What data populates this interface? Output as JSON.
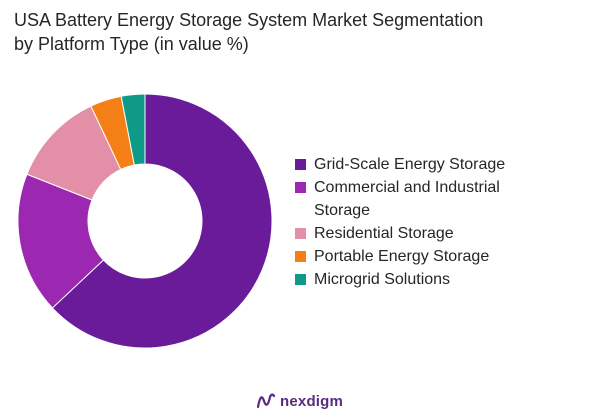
{
  "chart_data": {
    "type": "pie",
    "title_line1": "USA Battery Energy Storage System Market Segmentation",
    "title_line2": "by Platform Type (in value %)",
    "donut": true,
    "categories": [
      "Grid-Scale Energy Storage",
      "Commercial and Industrial Storage",
      "Residential Storage",
      "Portable Energy Storage",
      "Microgrid Solutions"
    ],
    "values": [
      63,
      18,
      12,
      4,
      3
    ],
    "colors": [
      "#6a1b9a",
      "#9c27b0",
      "#e38fa7",
      "#f57f17",
      "#0e9a87"
    ],
    "legend_position": "right"
  },
  "legend": {
    "items": [
      {
        "label_line1": "Grid-Scale Energy Storage",
        "label_line2": ""
      },
      {
        "label_line1": "Commercial and Industrial",
        "label_line2": "Storage"
      },
      {
        "label_line1": "Residential Storage",
        "label_line2": ""
      },
      {
        "label_line1": "Portable Energy Storage",
        "label_line2": ""
      },
      {
        "label_line1": "Microgrid Solutions",
        "label_line2": ""
      }
    ]
  },
  "brand": {
    "name": "nexdigm",
    "color": "#5a2a82"
  }
}
